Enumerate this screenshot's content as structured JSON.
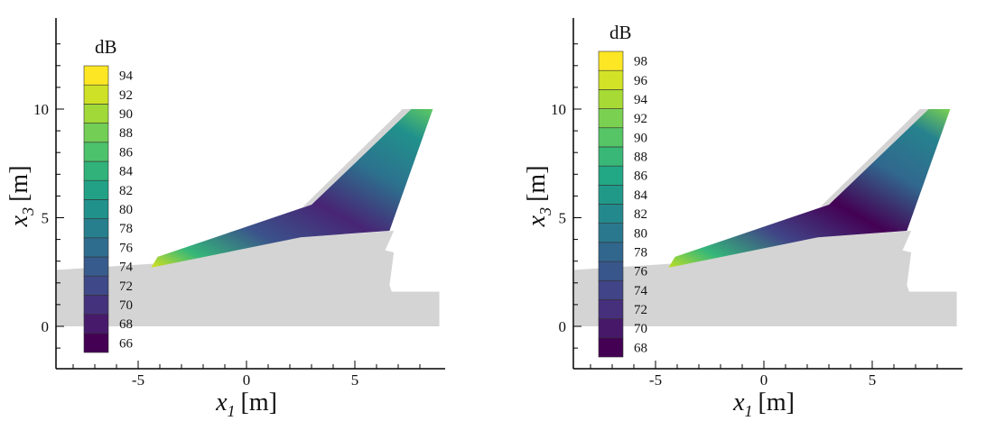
{
  "chart_data": [
    {
      "type": "contour",
      "panel": "left",
      "xlabel": {
        "var": "x",
        "sub": "1",
        "unit": "[m]"
      },
      "ylabel": {
        "var": "x",
        "sub": "3",
        "unit": "[m]"
      },
      "xlim": [
        -8.5,
        9
      ],
      "ylim": [
        -2,
        14
      ],
      "xticks": [
        -5,
        0,
        5
      ],
      "xtick_labels": [
        "-5",
        "0",
        "5"
      ],
      "yticks": [
        0,
        5,
        10
      ],
      "ytick_labels": [
        "0",
        "5",
        "10"
      ],
      "grid": false,
      "colorbar": {
        "title": "dB",
        "levels": [
          66,
          68,
          70,
          72,
          74,
          76,
          78,
          80,
          82,
          84,
          86,
          88,
          90,
          92,
          94
        ],
        "labels": [
          "66",
          "68",
          "70",
          "72",
          "74",
          "76",
          "78",
          "80",
          "82",
          "84",
          "86",
          "88",
          "90",
          "92",
          "94"
        ],
        "colormap": "viridis"
      },
      "wing_outline": {
        "x": [
          -4.4,
          2.5,
          6.6,
          8.6,
          7.6,
          3.0,
          -4.1
        ],
        "y": [
          2.7,
          4.1,
          4.4,
          10.0,
          10.0,
          5.6,
          3.2
        ]
      }
    },
    {
      "type": "contour",
      "panel": "right",
      "xlabel": {
        "var": "x",
        "sub": "1",
        "unit": "[m]"
      },
      "ylabel": {
        "var": "x",
        "sub": "3",
        "unit": "[m]"
      },
      "xlim": [
        -8.5,
        9
      ],
      "ylim": [
        -2,
        14
      ],
      "xticks": [
        -5,
        0,
        5
      ],
      "xtick_labels": [
        "-5",
        "0",
        "5"
      ],
      "yticks": [
        0,
        5,
        10
      ],
      "ytick_labels": [
        "0",
        "5",
        "10"
      ],
      "grid": false,
      "colorbar": {
        "title": "dB",
        "levels": [
          68,
          70,
          72,
          74,
          76,
          78,
          80,
          82,
          84,
          86,
          88,
          90,
          92,
          94,
          96,
          98
        ],
        "labels": [
          "68",
          "70",
          "72",
          "74",
          "76",
          "78",
          "80",
          "82",
          "84",
          "86",
          "88",
          "90",
          "92",
          "94",
          "96",
          "98"
        ],
        "colormap": "viridis"
      },
      "wing_outline": {
        "x": [
          -4.4,
          2.5,
          6.6,
          8.6,
          7.6,
          3.0,
          -4.1
        ],
        "y": [
          2.7,
          4.1,
          4.4,
          10.0,
          10.0,
          5.6,
          3.2
        ]
      }
    }
  ]
}
